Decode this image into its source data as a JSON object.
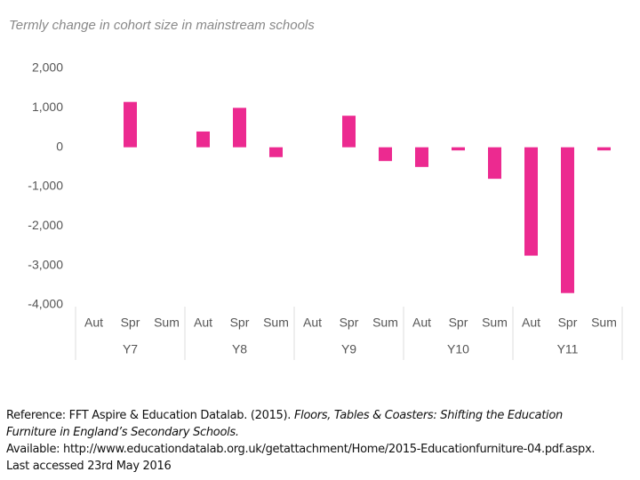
{
  "chart_data": {
    "type": "bar",
    "title": "Termly change in cohort size in mainstream schools",
    "categories": [
      "Aut",
      "Spr",
      "Sum",
      "Aut",
      "Spr",
      "Sum",
      "Aut",
      "Spr",
      "Sum",
      "Aut",
      "Spr",
      "Sum",
      "Aut",
      "Spr",
      "Sum"
    ],
    "groups": [
      "Y7",
      "Y8",
      "Y9",
      "Y10",
      "Y11"
    ],
    "values": [
      null,
      1150,
      null,
      400,
      1000,
      -250,
      null,
      800,
      -350,
      -500,
      -80,
      -800,
      -2750,
      -3700,
      -80
    ],
    "color": "#ec2a90",
    "ylim": [
      -4000,
      2000
    ],
    "yticks": [
      {
        "value": 2000,
        "label": "2,000"
      },
      {
        "value": 1000,
        "label": "1,000"
      },
      0,
      {
        "value": -1000,
        "label": "-1,000"
      },
      {
        "value": -2000,
        "label": "-2,000"
      },
      {
        "value": -3000,
        "label": "-3,000"
      },
      {
        "value": -4000,
        "label": "-4,000"
      }
    ],
    "grid": false
  },
  "reference": {
    "prefix": "Reference: FFT Aspire & Education Datalab. (2015). ",
    "title_line1": "Floors, Tables & Coasters: Shifting the Education",
    "title_line2": "Furniture in England’s Secondary Schools.",
    "available": "Available: http://www.educationdatalab.org.uk/getattachment/Home/2015-Educationfurniture-04.pdf.aspx.",
    "accessed": "Last accessed 23rd May 2016"
  }
}
